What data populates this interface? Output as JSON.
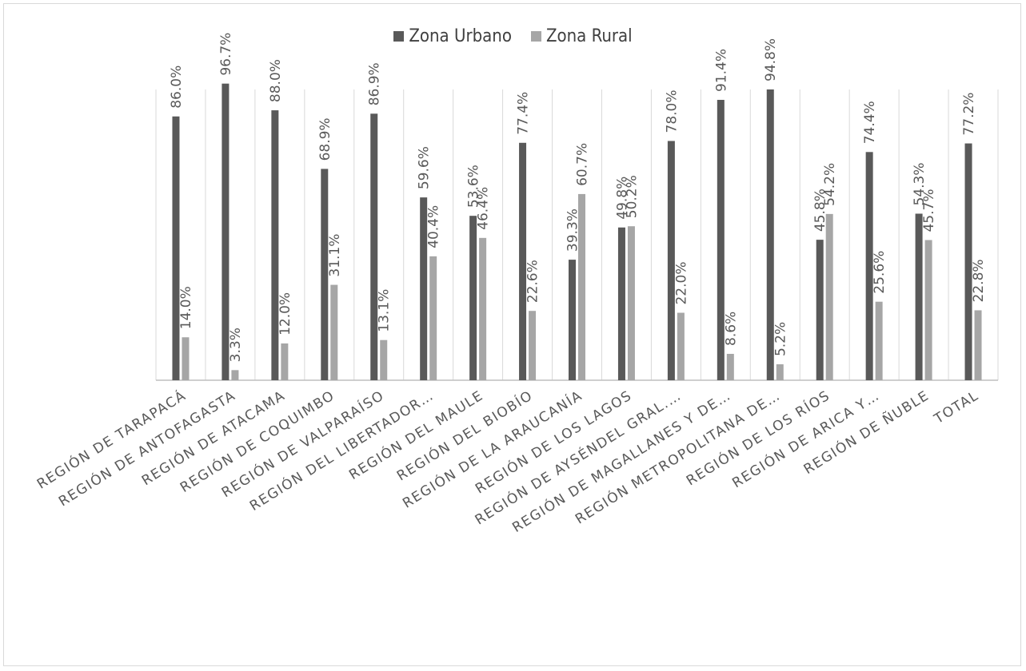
{
  "chart_data": {
    "type": "bar",
    "title": "",
    "xlabel": "",
    "ylabel": "",
    "ylim": [
      0,
      100
    ],
    "grid": "vertical-category-separators",
    "legend_position": "top-center",
    "categories": [
      "REGIÓN DE TARAPACÁ",
      "REGIÓN DE ANTOFAGASTA",
      "REGIÓN DE ATACAMA",
      "REGIÓN DE COQUIMBO",
      "REGIÓN DE VALPARAÍSO",
      "REGIÓN DEL LIBERTADOR…",
      "REGIÓN DEL MAULE",
      "REGIÓN DEL BIOBÍO",
      "REGIÓN DE LA ARAUCANÍA",
      "REGIÓN DE LOS LAGOS",
      "REGIÓN DE AYSÉNDEL GRAL.…",
      "REGIÓN DE MAGALLANES Y DE…",
      "REGIÓN METROPOLITANA DE…",
      "REGIÓN DE LOS RÍOS",
      "REGIÓN DE ARICA Y…",
      "REGIÓN DE ÑUBLE",
      "TOTAL"
    ],
    "series": [
      {
        "name": "Zona Urbano",
        "color": "#595959",
        "values": [
          86.0,
          96.7,
          88.0,
          68.9,
          86.9,
          59.6,
          53.6,
          77.4,
          39.3,
          49.8,
          78.0,
          91.4,
          94.8,
          45.8,
          74.4,
          54.3,
          77.2
        ],
        "labels": [
          "86.0%",
          "96.7%",
          "88.0%",
          "68.9%",
          "86.9%",
          "59.6%",
          "53.6%",
          "77.4%",
          "39.3%",
          "49.8%",
          "78.0%",
          "91.4%",
          "94.8%",
          "45.8%",
          "74.4%",
          "54.3%",
          "77.2%"
        ]
      },
      {
        "name": "Zona Rural",
        "color": "#a6a6a6",
        "values": [
          14.0,
          3.3,
          12.0,
          31.1,
          13.1,
          40.4,
          46.4,
          22.6,
          60.7,
          50.2,
          22.0,
          8.6,
          5.2,
          54.2,
          25.6,
          45.7,
          22.8
        ],
        "labels": [
          "14.0%",
          "3.3%",
          "12.0%",
          "31.1%",
          "13.1%",
          "40.4%",
          "46.4%",
          "22.6%",
          "60.7%",
          "50.2%",
          "22.0%",
          "8.6%",
          "5.2%",
          "54.2%",
          "25.6%",
          "45.7%",
          "22.8%"
        ]
      }
    ]
  }
}
